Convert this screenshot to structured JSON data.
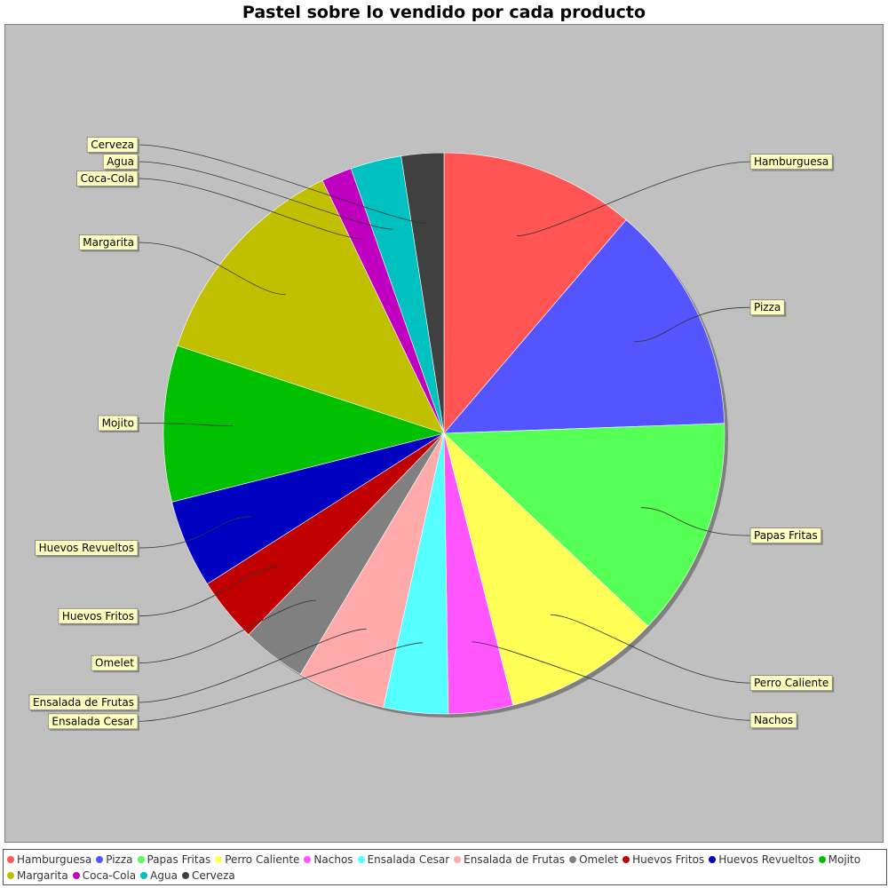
{
  "chart_data": {
    "type": "pie",
    "title": "Pastel sobre lo vendido por cada producto",
    "start_angle_deg": 90,
    "direction": "clockwise",
    "shadow": true,
    "plot_background": "#c0c0c0",
    "legend_position": "bottom",
    "slices": [
      {
        "label": "Hamburguesa",
        "value": 11.5,
        "color": "#ff5555"
      },
      {
        "label": "Pizza",
        "value": 13.5,
        "color": "#5555ff"
      },
      {
        "label": "Papas Fritas",
        "value": 12.9,
        "color": "#55ff55"
      },
      {
        "label": "Perro Caliente",
        "value": 9.2,
        "color": "#ffff55"
      },
      {
        "label": "Nachos",
        "value": 3.8,
        "color": "#ff55ff"
      },
      {
        "label": "Ensalada Cesar",
        "value": 3.8,
        "color": "#55ffff"
      },
      {
        "label": "Ensalada de Frutas",
        "value": 5.2,
        "color": "#ffaaaa"
      },
      {
        "label": "Omelet",
        "value": 3.8,
        "color": "#808080"
      },
      {
        "label": "Huevos Fritos",
        "value": 3.8,
        "color": "#c00000"
      },
      {
        "label": "Huevos Revueltos",
        "value": 5.2,
        "color": "#0000c0"
      },
      {
        "label": "Mojito",
        "value": 9.2,
        "color": "#00c000"
      },
      {
        "label": "Margarita",
        "value": 13.1,
        "color": "#c0c000"
      },
      {
        "label": "Coca-Cola",
        "value": 1.8,
        "color": "#c000c0"
      },
      {
        "label": "Agua",
        "value": 3.0,
        "color": "#00c0c0"
      },
      {
        "label": "Cerveza",
        "value": 2.5,
        "color": "#404040"
      }
    ]
  }
}
